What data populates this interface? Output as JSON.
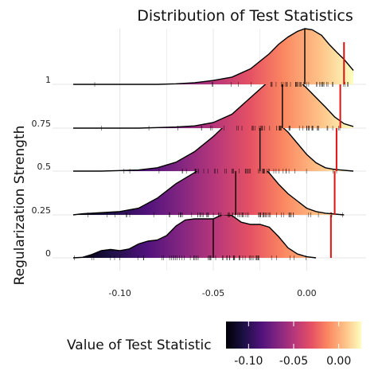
{
  "chart_data": {
    "type": "ridgeline",
    "title": "Distribution of Test Statistics",
    "xlabel": "",
    "ylabel": "Regularization Strength",
    "xlim": [
      -0.125,
      0.025
    ],
    "x_ticks": [
      -0.1,
      -0.05,
      0.0
    ],
    "x_tick_labels": [
      "-0.10",
      "-0.05",
      "0.00"
    ],
    "grid": true,
    "colormap": "magma (dark purple → orange → cream)",
    "series": [
      {
        "name": "0",
        "median": -0.05,
        "observed": 0.013,
        "density": [
          [
            -0.125,
            0
          ],
          [
            -0.12,
            0.01
          ],
          [
            -0.115,
            0.06
          ],
          [
            -0.11,
            0.13
          ],
          [
            -0.105,
            0.15
          ],
          [
            -0.1,
            0.13
          ],
          [
            -0.095,
            0.16
          ],
          [
            -0.09,
            0.25
          ],
          [
            -0.085,
            0.3
          ],
          [
            -0.08,
            0.32
          ],
          [
            -0.075,
            0.4
          ],
          [
            -0.07,
            0.57
          ],
          [
            -0.065,
            0.68
          ],
          [
            -0.06,
            0.7
          ],
          [
            -0.055,
            0.7
          ],
          [
            -0.05,
            0.7
          ],
          [
            -0.045,
            0.78
          ],
          [
            -0.04,
            0.76
          ],
          [
            -0.035,
            0.64
          ],
          [
            -0.03,
            0.6
          ],
          [
            -0.025,
            0.6
          ],
          [
            -0.02,
            0.55
          ],
          [
            -0.015,
            0.38
          ],
          [
            -0.01,
            0.18
          ],
          [
            -0.005,
            0.07
          ],
          [
            0,
            0.02
          ],
          [
            0.005,
            0
          ]
        ]
      },
      {
        "name": "0.25",
        "median": -0.038,
        "observed": 0.015,
        "density": [
          [
            -0.125,
            0
          ],
          [
            -0.12,
            0.02
          ],
          [
            -0.11,
            0.04
          ],
          [
            -0.1,
            0.06
          ],
          [
            -0.09,
            0.12
          ],
          [
            -0.08,
            0.3
          ],
          [
            -0.07,
            0.56
          ],
          [
            -0.06,
            0.76
          ],
          [
            -0.055,
            0.88
          ],
          [
            -0.05,
            0.95
          ],
          [
            -0.045,
            0.96
          ],
          [
            -0.04,
            0.92
          ],
          [
            -0.035,
            0.97
          ],
          [
            -0.03,
            0.99
          ],
          [
            -0.025,
            0.92
          ],
          [
            -0.02,
            0.75
          ],
          [
            -0.015,
            0.55
          ],
          [
            -0.01,
            0.38
          ],
          [
            -0.005,
            0.25
          ],
          [
            0,
            0.12
          ],
          [
            0.005,
            0.06
          ],
          [
            0.01,
            0.03
          ],
          [
            0.02,
            0
          ]
        ]
      },
      {
        "name": "0.5",
        "median": -0.025,
        "observed": 0.016,
        "density": [
          [
            -0.125,
            0
          ],
          [
            -0.11,
            0
          ],
          [
            -0.1,
            0.01
          ],
          [
            -0.09,
            0.02
          ],
          [
            -0.08,
            0.06
          ],
          [
            -0.07,
            0.16
          ],
          [
            -0.06,
            0.35
          ],
          [
            -0.05,
            0.62
          ],
          [
            -0.045,
            0.78
          ],
          [
            -0.04,
            0.87
          ],
          [
            -0.035,
            0.92
          ],
          [
            -0.03,
            0.97
          ],
          [
            -0.025,
            1.0
          ],
          [
            -0.02,
            0.96
          ],
          [
            -0.015,
            0.85
          ],
          [
            -0.01,
            0.7
          ],
          [
            -0.005,
            0.5
          ],
          [
            0,
            0.3
          ],
          [
            0.005,
            0.15
          ],
          [
            0.01,
            0.06
          ],
          [
            0.015,
            0.03
          ],
          [
            0.025,
            0
          ]
        ]
      },
      {
        "name": "0.75",
        "median": -0.013,
        "observed": 0.018,
        "density": [
          [
            -0.125,
            0
          ],
          [
            -0.09,
            0
          ],
          [
            -0.08,
            0.01
          ],
          [
            -0.07,
            0.02
          ],
          [
            -0.06,
            0.04
          ],
          [
            -0.05,
            0.1
          ],
          [
            -0.04,
            0.25
          ],
          [
            -0.03,
            0.55
          ],
          [
            -0.025,
            0.7
          ],
          [
            -0.02,
            0.85
          ],
          [
            -0.015,
            0.95
          ],
          [
            -0.012,
            1.0
          ],
          [
            -0.008,
            0.97
          ],
          [
            -0.005,
            0.88
          ],
          [
            0,
            0.72
          ],
          [
            0.005,
            0.55
          ],
          [
            0.01,
            0.38
          ],
          [
            0.015,
            0.2
          ],
          [
            0.02,
            0.08
          ],
          [
            0.025,
            0.03
          ]
        ]
      },
      {
        "name": "1",
        "median": -0.001,
        "observed": 0.02,
        "density": [
          [
            -0.125,
            0
          ],
          [
            -0.08,
            0
          ],
          [
            -0.07,
            0.01
          ],
          [
            -0.06,
            0.03
          ],
          [
            -0.05,
            0.07
          ],
          [
            -0.04,
            0.13
          ],
          [
            -0.03,
            0.28
          ],
          [
            -0.02,
            0.55
          ],
          [
            -0.015,
            0.72
          ],
          [
            -0.01,
            0.85
          ],
          [
            -0.005,
            0.95
          ],
          [
            -0.001,
            1.0
          ],
          [
            0.003,
            0.98
          ],
          [
            0.008,
            0.88
          ],
          [
            0.012,
            0.72
          ],
          [
            0.016,
            0.58
          ],
          [
            0.02,
            0.45
          ],
          [
            0.025,
            0.25
          ]
        ]
      }
    ],
    "legend": {
      "title": "Value of Test Statistic",
      "ticks": [
        "-0.10",
        "-0.05",
        "0.00"
      ],
      "tick_values": [
        -0.1,
        -0.05,
        0.0
      ],
      "range": [
        -0.125,
        0.025
      ],
      "position": "bottom"
    }
  }
}
